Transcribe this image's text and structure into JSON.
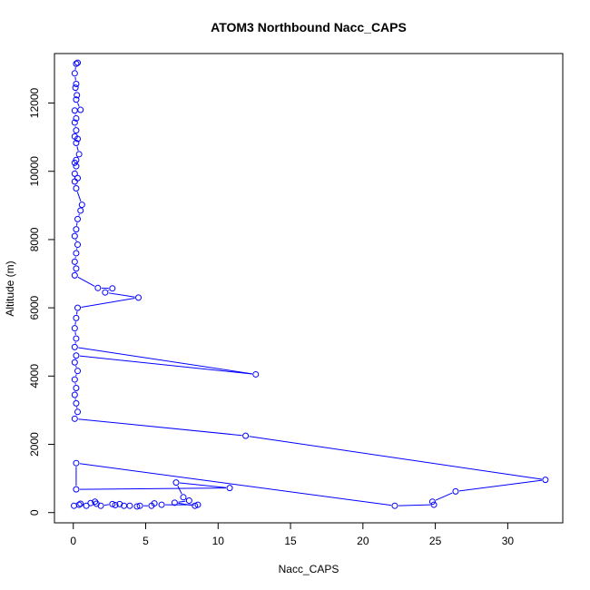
{
  "chart_data": {
    "type": "line",
    "title": "ATOM3 Northbound Nacc_CAPS",
    "xlabel": "Nacc_CAPS",
    "ylabel": "Altitude (m)",
    "xlim": [
      -1.3,
      33.8
    ],
    "ylim": [
      -300,
      13450
    ],
    "x_ticks": [
      0,
      5,
      10,
      15,
      20,
      25,
      30
    ],
    "y_ticks": [
      0,
      2000,
      4000,
      6000,
      8000,
      10000,
      12000
    ],
    "grid": false,
    "series_color": "#0000ff",
    "series": [
      {
        "marker": "open-circle",
        "points": [
          [
            0.3,
            13180
          ],
          [
            0.2,
            13150
          ],
          [
            0.1,
            12870
          ],
          [
            0.2,
            12560
          ],
          [
            0.15,
            12450
          ],
          [
            0.25,
            12230
          ],
          [
            0.2,
            12100
          ],
          [
            0.5,
            11800
          ],
          [
            0.1,
            11780
          ],
          [
            0.2,
            11550
          ],
          [
            0.1,
            11430
          ],
          [
            0.2,
            11200
          ],
          [
            0.1,
            11020
          ],
          [
            0.3,
            10950
          ],
          [
            0.2,
            10830
          ],
          [
            0.4,
            10500
          ],
          [
            0.2,
            10330
          ],
          [
            0.1,
            10250
          ],
          [
            0.2,
            10150
          ],
          [
            0.1,
            9930
          ],
          [
            0.3,
            9800
          ],
          [
            0.1,
            9700
          ],
          [
            0.2,
            9500
          ],
          [
            0.6,
            9020
          ],
          [
            0.5,
            8850
          ],
          [
            0.3,
            8600
          ],
          [
            0.2,
            8300
          ],
          [
            0.1,
            8100
          ],
          [
            0.3,
            7850
          ],
          [
            0.2,
            7600
          ],
          [
            0.1,
            7350
          ],
          [
            0.2,
            7150
          ],
          [
            0.1,
            6950
          ],
          [
            1.7,
            6580
          ],
          [
            2.7,
            6570
          ],
          [
            2.2,
            6450
          ],
          [
            4.5,
            6300
          ],
          [
            0.3,
            6000
          ],
          [
            0.2,
            5700
          ],
          [
            0.1,
            5400
          ],
          [
            0.2,
            5100
          ],
          [
            0.1,
            4850
          ],
          [
            12.6,
            4050
          ],
          [
            0.2,
            4600
          ],
          [
            0.1,
            4400
          ],
          [
            0.3,
            4150
          ],
          [
            0.1,
            3900
          ],
          [
            0.2,
            3650
          ],
          [
            0.1,
            3450
          ],
          [
            0.2,
            3200
          ],
          [
            0.3,
            2950
          ],
          [
            0.1,
            2750
          ],
          [
            11.9,
            2250
          ],
          [
            32.6,
            960
          ],
          [
            26.4,
            620
          ],
          [
            24.8,
            320
          ],
          [
            24.9,
            230
          ],
          [
            22.2,
            200
          ],
          [
            0.2,
            1450
          ],
          [
            0.2,
            680
          ],
          [
            10.8,
            720
          ],
          [
            7.1,
            880
          ],
          [
            7.6,
            450
          ],
          [
            8.0,
            350
          ],
          [
            7.0,
            290
          ],
          [
            8.4,
            200
          ],
          [
            8.6,
            230
          ],
          [
            6.1,
            230
          ],
          [
            5.6,
            270
          ],
          [
            5.4,
            200
          ],
          [
            4.6,
            200
          ],
          [
            4.4,
            180
          ],
          [
            3.9,
            200
          ],
          [
            3.5,
            200
          ],
          [
            3.2,
            250
          ],
          [
            2.9,
            220
          ],
          [
            2.7,
            250
          ],
          [
            1.9,
            200
          ],
          [
            1.6,
            260
          ],
          [
            1.5,
            320
          ],
          [
            1.2,
            280
          ],
          [
            0.9,
            200
          ],
          [
            0.5,
            260
          ],
          [
            0.4,
            230
          ],
          [
            0.05,
            200
          ]
        ]
      }
    ]
  }
}
